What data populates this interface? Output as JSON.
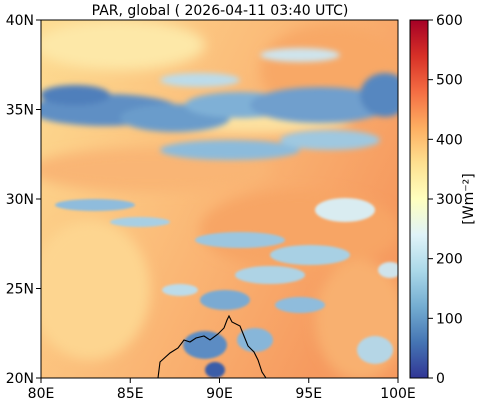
{
  "map": {
    "title": "PAR, global ( 2026-04-11 03:40 UTC)",
    "x_ticks": [
      {
        "value": 80,
        "label": "80E"
      },
      {
        "value": 85,
        "label": "85E"
      },
      {
        "value": 90,
        "label": "90E"
      },
      {
        "value": 95,
        "label": "95E"
      },
      {
        "value": 100,
        "label": "100E"
      }
    ],
    "y_ticks": [
      {
        "value": 20,
        "label": "20N"
      },
      {
        "value": 25,
        "label": "25N"
      },
      {
        "value": 30,
        "label": "30N"
      },
      {
        "value": 35,
        "label": "35N"
      },
      {
        "value": 40,
        "label": "40N"
      }
    ],
    "lon_range": [
      80,
      100
    ],
    "lat_range": [
      20,
      40
    ]
  },
  "colorbar": {
    "label": "[Wm⁻²]",
    "range": [
      0,
      600
    ],
    "ticks": [
      0,
      100,
      200,
      300,
      400,
      500,
      600
    ],
    "colors": [
      "#313695",
      "#4575b4",
      "#74add1",
      "#abd9e9",
      "#e0f3f8",
      "#ffffbf",
      "#fee090",
      "#fdae61",
      "#f46d43",
      "#d73027",
      "#a50026"
    ]
  }
}
